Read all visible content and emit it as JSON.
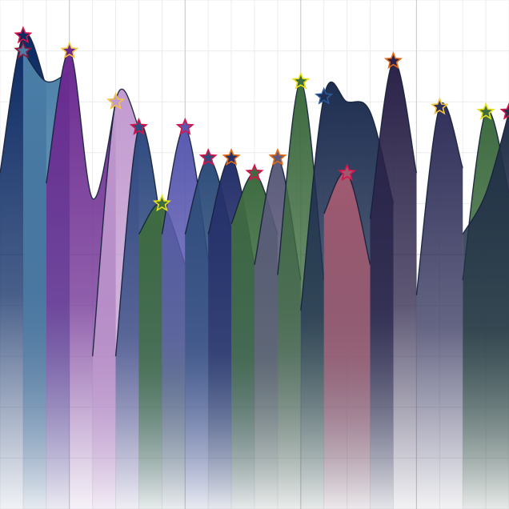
{
  "chart_data": {
    "type": "area",
    "title": "",
    "xlabel": "",
    "ylabel": "",
    "xlim": [
      0,
      22
    ],
    "ylim": [
      0,
      100
    ],
    "grid": true,
    "legend": "none",
    "series": [
      {
        "color": "#0b2a63",
        "marker_color": "#d6144b",
        "values": [
          [
            0,
            66
          ],
          [
            1,
            93
          ],
          [
            2,
            83
          ]
        ]
      },
      {
        "color": "#4b7fa8",
        "marker_color": "#8b1a3a",
        "values": [
          [
            1,
            90
          ],
          [
            2,
            84
          ],
          [
            3,
            86
          ]
        ]
      },
      {
        "color": "#6b2a90",
        "marker_color": "#f4c542",
        "values": [
          [
            2,
            64
          ],
          [
            3,
            90
          ],
          [
            4,
            61
          ],
          [
            5,
            80
          ]
        ]
      },
      {
        "color": "#c29bd0",
        "marker_color": "#f4c542",
        "values": [
          [
            4,
            30
          ],
          [
            5,
            80
          ],
          [
            6,
            75
          ]
        ]
      },
      {
        "color": "#2f4a80",
        "marker_color": "#d6144b",
        "values": [
          [
            5,
            30
          ],
          [
            6,
            75
          ],
          [
            7,
            55
          ]
        ]
      },
      {
        "color": "#3e6b40",
        "marker_color": "#e8e01a",
        "values": [
          [
            6,
            54
          ],
          [
            7,
            60
          ],
          [
            8,
            48
          ]
        ]
      },
      {
        "color": "#5a5ab0",
        "marker_color": "#d6144b",
        "values": [
          [
            7,
            54
          ],
          [
            8,
            75
          ],
          [
            9,
            49
          ]
        ]
      },
      {
        "color": "#2e4d7a",
        "marker_color": "#d6144b",
        "values": [
          [
            8,
            54
          ],
          [
            9,
            69
          ],
          [
            10,
            55
          ]
        ]
      },
      {
        "color": "#25306a",
        "marker_color": "#e06b1a",
        "values": [
          [
            9,
            54
          ],
          [
            10,
            69
          ],
          [
            11,
            48
          ]
        ]
      },
      {
        "color": "#3e6b40",
        "marker_color": "#d6144b",
        "values": [
          [
            10,
            56
          ],
          [
            11,
            66
          ],
          [
            12,
            54
          ]
        ]
      },
      {
        "color": "#5a5a7a",
        "marker_color": "#e06b1a",
        "values": [
          [
            11,
            48
          ],
          [
            12,
            69
          ],
          [
            13,
            45
          ]
        ]
      },
      {
        "color": "#3e6b40",
        "marker_color": "#e8e01a",
        "values": [
          [
            12,
            46
          ],
          [
            13,
            84
          ],
          [
            14,
            45
          ]
        ]
      },
      {
        "color": "#1e2e50",
        "marker_color": "#2b5a9c",
        "values": [
          [
            13,
            39
          ],
          [
            14,
            81
          ],
          [
            15,
            80
          ],
          [
            16,
            78
          ],
          [
            17,
            60
          ]
        ]
      },
      {
        "color": "#a05a70",
        "marker_color": "#d6144b",
        "values": [
          [
            14,
            58
          ],
          [
            15,
            66
          ],
          [
            16,
            48
          ]
        ]
      },
      {
        "color": "#2a2248",
        "marker_color": "#e06b1a",
        "values": [
          [
            16,
            57
          ],
          [
            17,
            88
          ],
          [
            18,
            66
          ]
        ]
      },
      {
        "color": "#30305a",
        "marker_color": "#f4c542",
        "values": [
          [
            18,
            42
          ],
          [
            19,
            79
          ],
          [
            20,
            67
          ]
        ]
      },
      {
        "color": "#3e6b40",
        "marker_color": "#e8e01a",
        "values": [
          [
            20,
            45
          ],
          [
            21,
            78
          ],
          [
            22,
            62
          ]
        ]
      },
      {
        "color": "#223048",
        "marker_color": "#d6144b",
        "values": [
          [
            20,
            54
          ],
          [
            21,
            62
          ],
          [
            22,
            78
          ]
        ]
      }
    ]
  }
}
